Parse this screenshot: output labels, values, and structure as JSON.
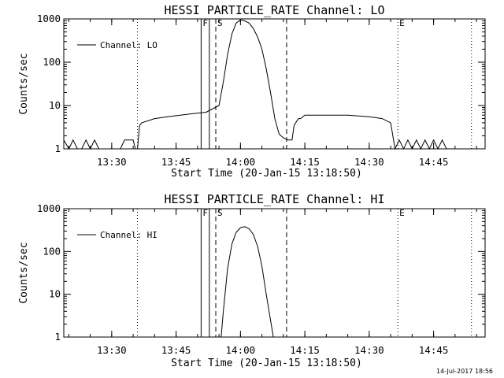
{
  "footer_date": "14-Jul-2017 18:56",
  "chart_data": [
    {
      "type": "line",
      "title": "HESSI PARTICLE_RATE Channel: LO",
      "xlabel": "Start Time (20-Jan-15 13:18:50)",
      "ylabel": "Counts/sec",
      "yscale": "log",
      "ylim": [
        1,
        1000
      ],
      "xlim": [
        "13:18:50",
        "14:57:00"
      ],
      "x_ticks": [
        "13:30",
        "13:45",
        "14:00",
        "14:15",
        "14:30",
        "14:45"
      ],
      "y_ticks": [
        "1",
        "10",
        "100",
        "1000"
      ],
      "grid": false,
      "legend_position": "top-left",
      "series": [
        {
          "name": "Channel: LO",
          "x": [
            "13:18:50",
            "13:20:00",
            "13:21:00",
            "13:22:00",
            "13:23:00",
            "13:24:00",
            "13:25:00",
            "13:26:00",
            "13:27:00",
            "13:28:00",
            "13:29:00",
            "13:30:00",
            "13:31:00",
            "13:32:00",
            "13:33:00",
            "13:33:30",
            "13:34:30",
            "13:35:00",
            "13:35:30",
            "13:36:00",
            "13:36:30",
            "13:37:00",
            "13:40:00",
            "13:43:00",
            "13:46:00",
            "13:49:00",
            "13:52:00",
            "13:55:00",
            "13:56:00",
            "13:57:00",
            "13:58:00",
            "13:59:00",
            "14:00:00",
            "14:01:00",
            "14:02:00",
            "14:03:00",
            "14:04:00",
            "14:05:00",
            "14:06:00",
            "14:07:00",
            "14:08:00",
            "14:09:00",
            "14:10:00",
            "14:11:00",
            "14:12:00",
            "14:12:30",
            "14:13:30",
            "14:14:00",
            "14:15:00",
            "14:20:00",
            "14:25:00",
            "14:30:00",
            "14:33:00",
            "14:35:00",
            "14:36:00",
            "14:37:00",
            "14:38:00",
            "14:39:00",
            "14:40:00",
            "14:41:00",
            "14:42:00",
            "14:43:00",
            "14:44:00",
            "14:45:00",
            "14:46:00",
            "14:47:00",
            "14:48:00",
            "14:57:00"
          ],
          "y": [
            1.6,
            1,
            1.6,
            1,
            1,
            1.6,
            1,
            1.6,
            1,
            1,
            1,
            1,
            1,
            1,
            1.6,
            1.6,
            1.6,
            1.6,
            1,
            1,
            3.5,
            4,
            5,
            5.5,
            6,
            6.5,
            7,
            10,
            35,
            150,
            450,
            800,
            950,
            900,
            800,
            600,
            380,
            200,
            70,
            20,
            5,
            2.2,
            1.8,
            1.6,
            1.6,
            3.5,
            5,
            5,
            6,
            6,
            6,
            5.5,
            5,
            4,
            1,
            1.6,
            1,
            1.6,
            1,
            1.6,
            1,
            1.6,
            1,
            1.6,
            1,
            1.6,
            1,
            1
          ]
        }
      ],
      "markers": [
        {
          "x": "13:36:00",
          "style": "dotted",
          "label": ""
        },
        {
          "x": "13:50:50",
          "style": "solid",
          "label": "F"
        },
        {
          "x": "13:52:45",
          "style": "solid",
          "label": ""
        },
        {
          "x": "13:54:15",
          "style": "dashed",
          "label": "S"
        },
        {
          "x": "14:10:45",
          "style": "dashed",
          "label": ""
        },
        {
          "x": "14:36:40",
          "style": "dotted",
          "label": "E"
        },
        {
          "x": "14:53:50",
          "style": "dotted",
          "label": ""
        }
      ]
    },
    {
      "type": "line",
      "title": "HESSI PARTICLE_RATE Channel: HI",
      "xlabel": "Start Time (20-Jan-15 13:18:50)",
      "ylabel": "Counts/sec",
      "yscale": "log",
      "ylim": [
        1,
        1000
      ],
      "xlim": [
        "13:18:50",
        "14:57:00"
      ],
      "x_ticks": [
        "13:30",
        "13:45",
        "14:00",
        "14:15",
        "14:30",
        "14:45"
      ],
      "y_ticks": [
        "1",
        "10",
        "100",
        "1000"
      ],
      "grid": false,
      "legend_position": "top-left",
      "series": [
        {
          "name": "Channel: HI",
          "x": [
            "13:55:30",
            "13:56:00",
            "13:57:00",
            "13:58:00",
            "13:59:00",
            "14:00:00",
            "14:01:00",
            "14:02:00",
            "14:03:00",
            "14:04:00",
            "14:05:00",
            "14:06:00",
            "14:07:00",
            "14:07:40"
          ],
          "y": [
            1,
            4,
            40,
            150,
            280,
            360,
            380,
            340,
            250,
            130,
            45,
            10,
            2.5,
            1
          ]
        }
      ],
      "markers": [
        {
          "x": "13:36:00",
          "style": "dotted",
          "label": ""
        },
        {
          "x": "13:50:50",
          "style": "solid",
          "label": "F"
        },
        {
          "x": "13:52:45",
          "style": "solid",
          "label": ""
        },
        {
          "x": "13:54:15",
          "style": "dashed",
          "label": "S"
        },
        {
          "x": "14:10:45",
          "style": "dashed",
          "label": ""
        },
        {
          "x": "14:36:40",
          "style": "dotted",
          "label": "E"
        },
        {
          "x": "14:53:50",
          "style": "dotted",
          "label": ""
        }
      ]
    }
  ]
}
